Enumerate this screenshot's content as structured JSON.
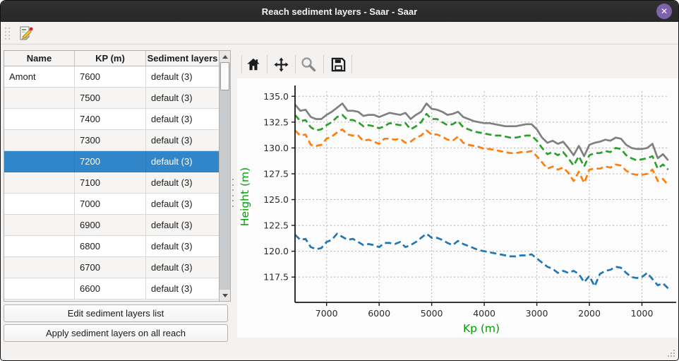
{
  "window": {
    "title": "Reach sediment layers - Saar - Saar"
  },
  "titlebar": {
    "close_glyph": "✕"
  },
  "table": {
    "headers": [
      "Name",
      "KP (m)",
      "Sediment layers"
    ],
    "selected_index": 4,
    "rows": [
      {
        "name": "Amont",
        "kp": "7600",
        "layers": "default (3)"
      },
      {
        "name": "",
        "kp": "7500",
        "layers": "default (3)"
      },
      {
        "name": "",
        "kp": "7400",
        "layers": "default (3)"
      },
      {
        "name": "",
        "kp": "7300",
        "layers": "default (3)"
      },
      {
        "name": "",
        "kp": "7200",
        "layers": "default (3)"
      },
      {
        "name": "",
        "kp": "7100",
        "layers": "default (3)"
      },
      {
        "name": "",
        "kp": "7000",
        "layers": "default (3)"
      },
      {
        "name": "",
        "kp": "6900",
        "layers": "default (3)"
      },
      {
        "name": "",
        "kp": "6800",
        "layers": "default (3)"
      },
      {
        "name": "",
        "kp": "6700",
        "layers": "default (3)"
      },
      {
        "name": "",
        "kp": "6600",
        "layers": "default (3)"
      }
    ]
  },
  "actions": {
    "edit_button": "Edit sediment layers list",
    "apply_button": "Apply sediment layers on all reach"
  },
  "plot_toolbar": {
    "buttons": [
      "home",
      "pan",
      "zoom",
      "save"
    ]
  },
  "colors": {
    "selection": "#3086c8",
    "close_button": "#7d63a9",
    "titlebar": "#2b2b2b"
  },
  "chart_data": {
    "type": "line",
    "title": "",
    "xlabel": "Kp (m)",
    "ylabel": "Height (m)",
    "axis_label_color": "#00a000",
    "tick_color": "#2b2b2b",
    "grid": true,
    "legend": "none",
    "x_reversed": true,
    "xlim": [
      7600,
      510
    ],
    "ylim": [
      115.05,
      135.5
    ],
    "x_ticks": [
      7000,
      6000,
      5000,
      4000,
      3000,
      2000,
      1000
    ],
    "y_ticks": [
      117.5,
      120.0,
      122.5,
      125.0,
      127.5,
      130.0,
      132.5,
      135.0
    ],
    "x": [
      7600,
      7500,
      7400,
      7300,
      7200,
      7100,
      7000,
      6900,
      6800,
      6700,
      6600,
      6500,
      6400,
      6300,
      6200,
      6100,
      6000,
      5900,
      5800,
      5700,
      5600,
      5500,
      5400,
      5300,
      5200,
      5100,
      5000,
      4900,
      4800,
      4700,
      4600,
      4500,
      4400,
      4300,
      4200,
      4100,
      4000,
      3900,
      3800,
      3700,
      3600,
      3500,
      3400,
      3300,
      3200,
      3100,
      3000,
      2900,
      2800,
      2700,
      2600,
      2500,
      2400,
      2300,
      2200,
      2100,
      2000,
      1900,
      1800,
      1700,
      1600,
      1500,
      1400,
      1300,
      1200,
      1100,
      1000,
      900,
      800,
      700,
      600,
      500
    ],
    "series": [
      {
        "name": "gray_solid",
        "color": "#808080",
        "dashed": false,
        "values": [
          134.2,
          133.6,
          133.7,
          133.0,
          132.8,
          132.8,
          133.2,
          133.5,
          133.9,
          134.3,
          133.6,
          133.6,
          133.5,
          133.1,
          133.2,
          133.2,
          133.0,
          133.2,
          133.4,
          133.3,
          133.2,
          133.4,
          132.8,
          133.2,
          133.5,
          134.3,
          133.8,
          133.7,
          133.5,
          133.2,
          133.3,
          133.5,
          133.0,
          132.8,
          132.6,
          132.5,
          132.4,
          132.4,
          132.3,
          132.2,
          132.1,
          132.1,
          132.1,
          132.2,
          132.3,
          132.3,
          131.8,
          131.0,
          130.5,
          130.7,
          130.4,
          130.6,
          130.0,
          129.3,
          130.2,
          129.2,
          130.3,
          130.5,
          130.6,
          130.8,
          130.7,
          131.0,
          130.9,
          130.3,
          130.0,
          129.9,
          129.9,
          130.0,
          130.4,
          129.0,
          129.4,
          128.8
        ]
      },
      {
        "name": "green_dashed",
        "color": "#2ca02c",
        "dashed": true,
        "values": [
          133.2,
          132.6,
          132.7,
          132.0,
          131.7,
          131.8,
          132.2,
          132.5,
          133.0,
          133.2,
          132.7,
          132.7,
          132.5,
          132.1,
          132.2,
          132.1,
          131.9,
          132.1,
          132.4,
          132.3,
          132.2,
          132.4,
          131.8,
          132.1,
          132.5,
          133.3,
          132.8,
          132.8,
          132.5,
          132.2,
          132.3,
          132.6,
          132.0,
          131.8,
          131.6,
          131.5,
          131.4,
          131.3,
          131.2,
          131.2,
          131.1,
          131.0,
          131.0,
          131.1,
          131.2,
          131.2,
          130.7,
          130.0,
          129.4,
          129.6,
          129.3,
          129.6,
          129.0,
          128.3,
          129.2,
          128.2,
          129.3,
          129.5,
          129.5,
          129.7,
          129.6,
          130.0,
          129.9,
          129.3,
          129.0,
          128.8,
          128.9,
          129.0,
          129.2,
          128.0,
          128.4,
          127.9
        ]
      },
      {
        "name": "orange_dashed",
        "color": "#ff7f0e",
        "dashed": true,
        "values": [
          131.7,
          131.2,
          131.3,
          130.3,
          130.2,
          130.3,
          130.9,
          131.1,
          131.5,
          131.8,
          131.3,
          131.2,
          131.2,
          130.7,
          130.8,
          130.6,
          130.4,
          130.9,
          130.9,
          130.8,
          130.9,
          130.5,
          130.6,
          131.0,
          131.2,
          131.7,
          131.3,
          131.3,
          131.1,
          130.8,
          130.7,
          131.1,
          130.5,
          130.3,
          130.2,
          130.1,
          129.9,
          129.9,
          129.8,
          129.7,
          129.6,
          129.5,
          129.5,
          129.6,
          129.6,
          129.7,
          129.2,
          128.6,
          128.0,
          128.2,
          127.9,
          128.1,
          127.6,
          126.8,
          127.7,
          126.6,
          127.9,
          128.0,
          128.0,
          128.2,
          128.1,
          128.4,
          128.3,
          127.8,
          127.5,
          127.4,
          127.4,
          127.5,
          127.9,
          126.8,
          127.0,
          126.4
        ]
      },
      {
        "name": "blue_dashed",
        "color": "#1f77b4",
        "dashed": true,
        "values": [
          121.6,
          121.1,
          121.2,
          120.4,
          120.2,
          120.3,
          120.9,
          121.1,
          121.7,
          121.4,
          121.1,
          121.2,
          120.9,
          120.6,
          120.7,
          120.6,
          120.4,
          120.8,
          120.8,
          120.7,
          120.9,
          120.4,
          120.6,
          120.9,
          121.3,
          121.7,
          121.3,
          121.3,
          121.1,
          120.8,
          120.6,
          121.0,
          120.7,
          120.5,
          120.3,
          120.1,
          120.0,
          119.9,
          119.8,
          119.7,
          119.6,
          119.5,
          119.5,
          119.6,
          119.6,
          119.7,
          119.3,
          118.9,
          118.5,
          118.3,
          117.9,
          118.1,
          117.9,
          118.1,
          117.8,
          117.0,
          117.6,
          116.6,
          117.8,
          118.1,
          118.2,
          118.5,
          118.4,
          117.9,
          117.5,
          117.4,
          117.5,
          117.9,
          117.3,
          116.7,
          116.9,
          116.4
        ]
      }
    ]
  }
}
